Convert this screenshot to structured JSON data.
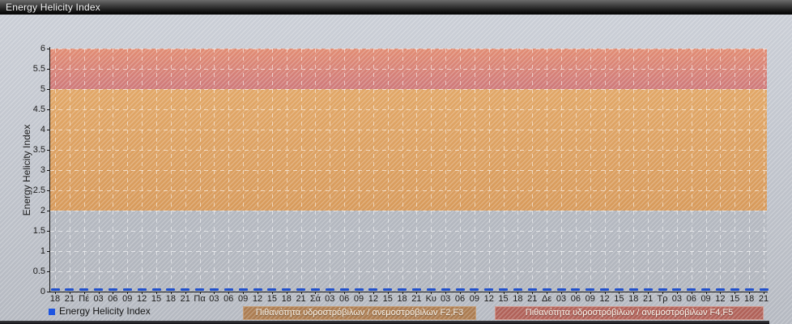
{
  "window": {
    "title": "Energy Helicity Index"
  },
  "chart_data": {
    "type": "line",
    "title": "Energy Helicity Index",
    "xlabel": "",
    "ylabel": "Energy Helicity Index",
    "ylim": [
      0,
      6
    ],
    "grid": true,
    "legend_position": "bottom-left",
    "y_ticks": [
      "0",
      "0.5",
      "1",
      "1.5",
      "2",
      "2.5",
      "3",
      "3.5",
      "4",
      "4.5",
      "5",
      "5.5",
      "6"
    ],
    "x_ticks": [
      "18",
      "21",
      "Πέ",
      "03",
      "06",
      "09",
      "12",
      "15",
      "18",
      "21",
      "Πα",
      "03",
      "06",
      "09",
      "12",
      "15",
      "18",
      "21",
      "Σά",
      "03",
      "06",
      "09",
      "12",
      "15",
      "18",
      "21",
      "Κυ",
      "03",
      "06",
      "09",
      "12",
      "15",
      "18",
      "21",
      "Δε",
      "03",
      "06",
      "09",
      "12",
      "15",
      "18",
      "21",
      "Τρ",
      "03",
      "06",
      "09",
      "12",
      "15",
      "18",
      "21"
    ],
    "series": [
      {
        "name": "Energy Helicity Index",
        "marker_color": "#2150cc",
        "values": [
          0,
          0,
          0,
          0,
          0,
          0,
          0,
          0,
          0,
          0,
          0,
          0,
          0,
          0,
          0,
          0,
          0,
          0,
          0,
          0,
          0,
          0,
          0,
          0,
          0,
          0,
          0,
          0,
          0,
          0,
          0,
          0,
          0,
          0,
          0,
          0,
          0,
          0,
          0,
          0,
          0,
          0,
          0,
          0,
          0,
          0,
          0,
          0,
          0,
          0
        ]
      }
    ],
    "bands": [
      {
        "range": [
          0,
          2
        ],
        "label": "",
        "color_top": "#b4b8c0",
        "color_bottom": "#b2b6be"
      },
      {
        "range": [
          2,
          5
        ],
        "label": "Πιθανότητα υδροστρόβιλων / ανεμοστρόβιλων F2,F3",
        "color_top": "#e2a766",
        "color_bottom": "#d89a5a"
      },
      {
        "range": [
          5,
          6
        ],
        "label": "Πιθανότητα υδροστρόβιλων / ανεμοστρόβιλων F4,F5",
        "color_top": "#e28c72",
        "color_bottom": "#cf797a"
      }
    ]
  },
  "legend": {
    "series_label": "Energy Helicity Index",
    "marker_color": "#1e55e0"
  },
  "threshold_legend": {
    "f23": {
      "label": "Πιθανότητα υδροστρόβιλων / ανεμοστρόβιλων F2,F3",
      "bg": "#ac7c50",
      "border": "#c7a17c"
    },
    "f45": {
      "label": "Πιθανότητα υδροστρόβιλων / ανεμοστρόβιλων F4,F5",
      "bg": "#b16158",
      "border": "#d29b91"
    }
  },
  "colors": {
    "background_top": "#ccd0d8",
    "background_bottom": "#b5b9c1",
    "titlebar_text": "#f4f4f4",
    "axis": "#141414",
    "grid_dash": "#ffffff",
    "data_marker": "#2150cc"
  }
}
